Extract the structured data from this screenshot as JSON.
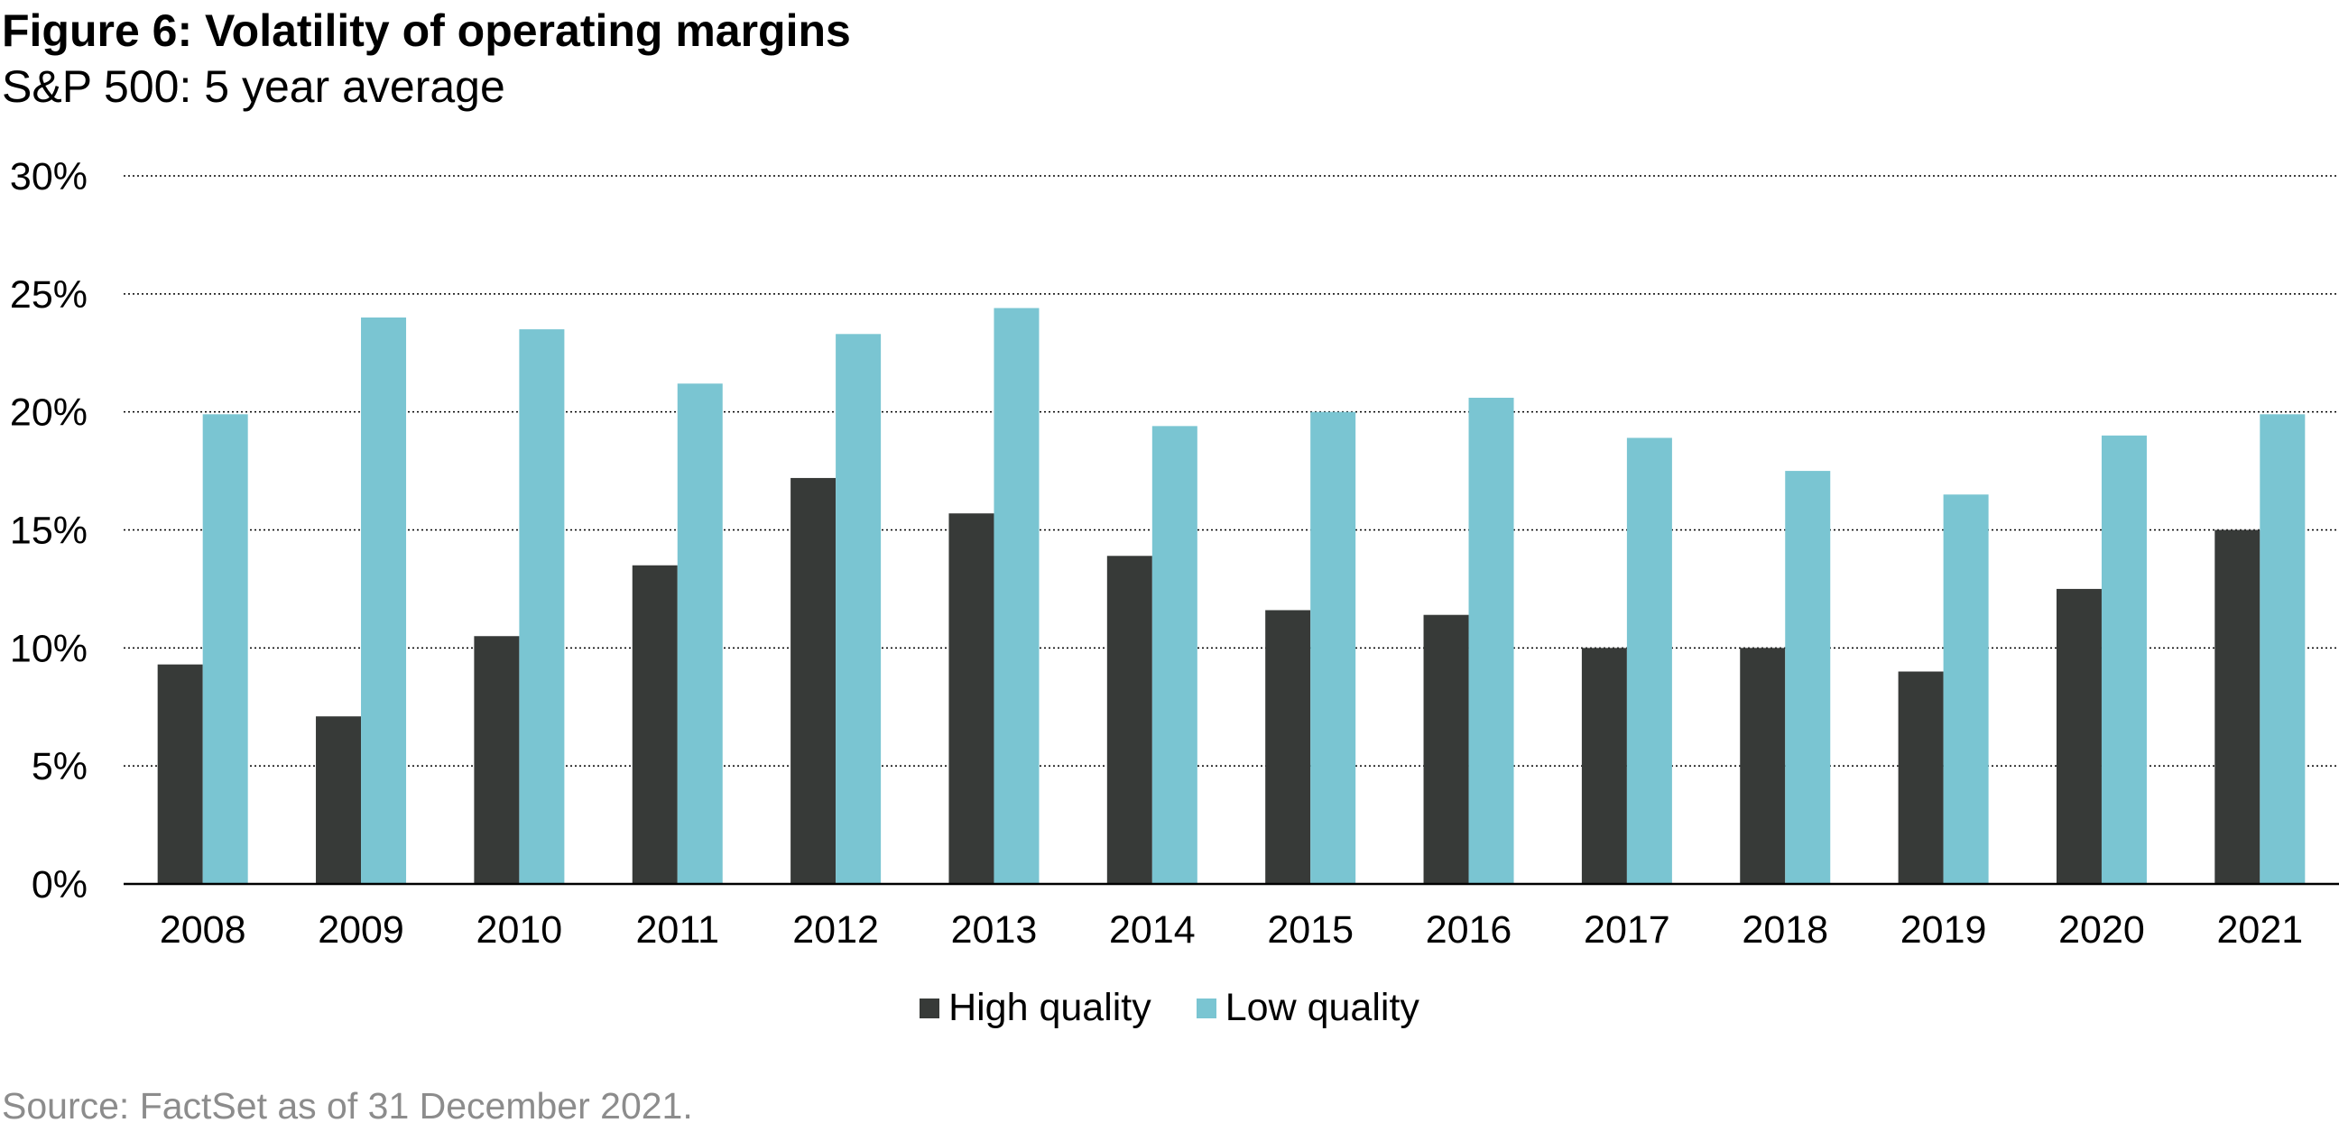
{
  "title": "Figure 6: Volatility of operating margins",
  "subtitle": "S&P 500: 5 year average",
  "source": "Source: FactSet as of 31 December 2021.",
  "chart_data": {
    "type": "bar",
    "categories": [
      "2008",
      "2009",
      "2010",
      "2011",
      "2012",
      "2013",
      "2014",
      "2015",
      "2016",
      "2017",
      "2018",
      "2019",
      "2020",
      "2021"
    ],
    "series": [
      {
        "name": "High quality",
        "color": "#373a38",
        "values": [
          9.3,
          7.1,
          10.5,
          13.5,
          17.2,
          15.7,
          13.9,
          11.6,
          11.4,
          10.0,
          10.0,
          9.0,
          12.5,
          15.0
        ]
      },
      {
        "name": "Low quality",
        "color": "#7ac5d2",
        "values": [
          19.9,
          24.0,
          23.5,
          21.2,
          23.3,
          24.4,
          19.4,
          20.0,
          20.6,
          18.9,
          17.5,
          16.5,
          19.0,
          19.9
        ]
      }
    ],
    "ylim": [
      0,
      30
    ],
    "yticks": [
      0,
      5,
      10,
      15,
      20,
      25,
      30
    ],
    "ytick_labels": [
      "0%",
      "5%",
      "10%",
      "15%",
      "20%",
      "25%",
      "30%"
    ],
    "grid": "horizontal dotted",
    "legend": "bottom-center"
  }
}
